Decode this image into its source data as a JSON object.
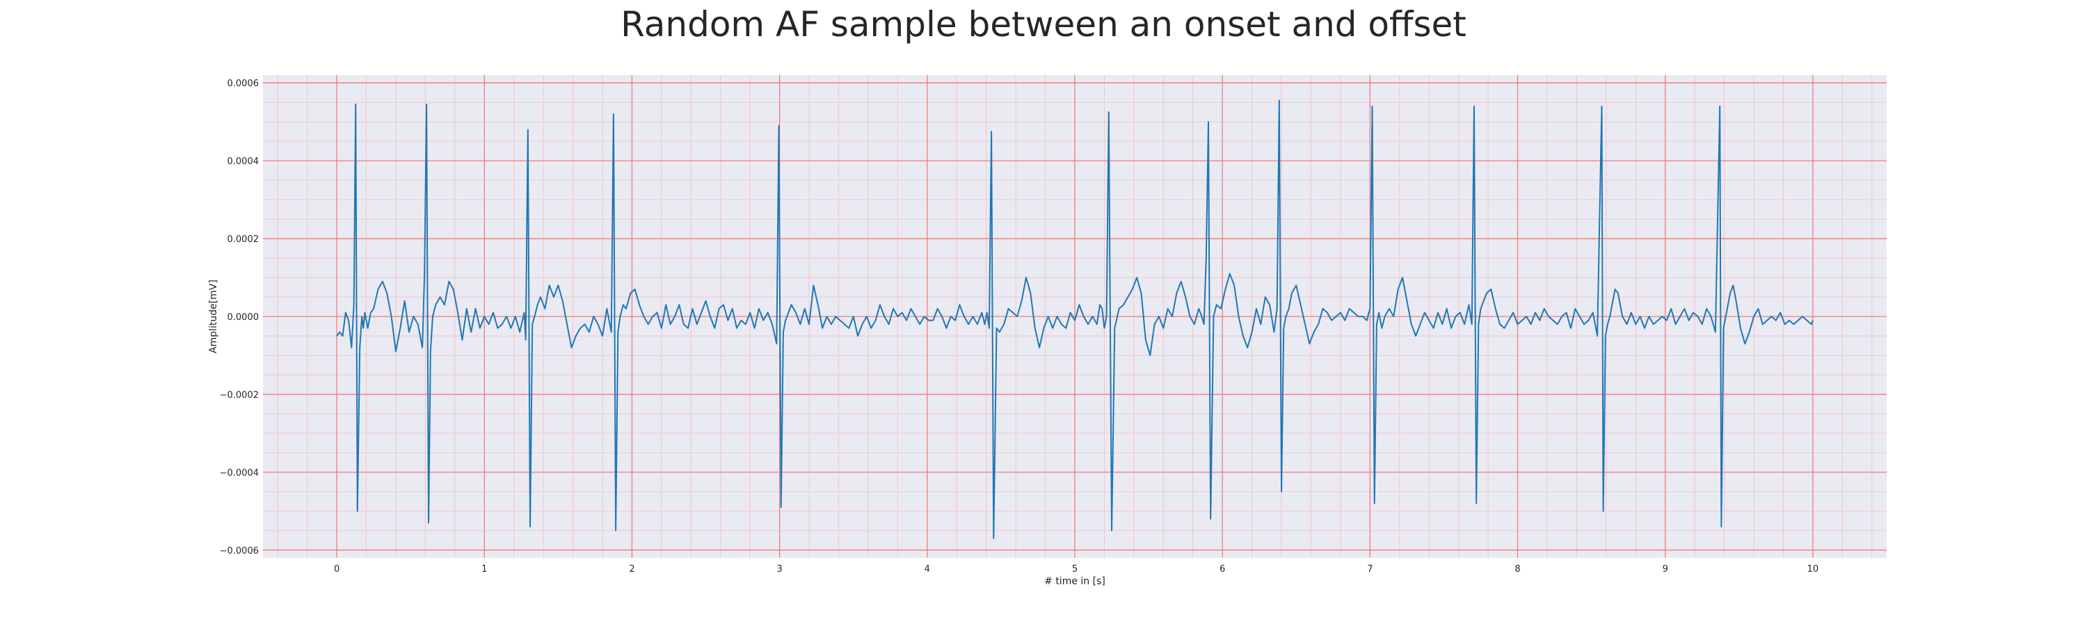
{
  "chart_data": {
    "type": "line",
    "title": "Random AF sample between an onset and offset",
    "xlabel": "# time in [s]",
    "ylabel": "Amplitude[mV]",
    "xlim": [
      -0.5,
      10.5
    ],
    "ylim": [
      -0.00062,
      0.00062
    ],
    "x_ticks": [
      0,
      1,
      2,
      3,
      4,
      5,
      6,
      7,
      8,
      9,
      10
    ],
    "x_tick_labels": [
      "0",
      "1",
      "2",
      "3",
      "4",
      "5",
      "6",
      "7",
      "8",
      "9",
      "10"
    ],
    "y_ticks": [
      -0.0006,
      -0.0004,
      -0.0002,
      0.0,
      0.0002,
      0.0004,
      0.0006
    ],
    "y_tick_labels": [
      "−0.0006",
      "−0.0004",
      "−0.0002",
      "0.0000",
      "0.0002",
      "0.0004",
      "0.0006"
    ],
    "grid": true,
    "minor_grid": true,
    "colors": {
      "line": "#1f77b4",
      "major_grid": "#f07b7b",
      "minor_grid": "#f4c3cf",
      "background": "#eaeaf2"
    },
    "series": [
      {
        "x": [
          0.0,
          0.02,
          0.04,
          0.06,
          0.08,
          0.1,
          0.116,
          0.128,
          0.14,
          0.156,
          0.17,
          0.18,
          0.19,
          0.21,
          0.23,
          0.25,
          0.28,
          0.31,
          0.34,
          0.37,
          0.4,
          0.43,
          0.46,
          0.49,
          0.52,
          0.55,
          0.58,
          0.595,
          0.608,
          0.622,
          0.635,
          0.65,
          0.67,
          0.7,
          0.73,
          0.76,
          0.79,
          0.82,
          0.85,
          0.88,
          0.91,
          0.94,
          0.97,
          1.0,
          1.03,
          1.06,
          1.09,
          1.12,
          1.15,
          1.18,
          1.21,
          1.24,
          1.27,
          1.28,
          1.295,
          1.31,
          1.325,
          1.34,
          1.36,
          1.38,
          1.41,
          1.44,
          1.47,
          1.5,
          1.53,
          1.56,
          1.59,
          1.62,
          1.65,
          1.68,
          1.71,
          1.74,
          1.77,
          1.8,
          1.83,
          1.86,
          1.875,
          1.89,
          1.905,
          1.92,
          1.94,
          1.96,
          1.99,
          2.02,
          2.05,
          2.08,
          2.11,
          2.14,
          2.17,
          2.2,
          2.23,
          2.26,
          2.29,
          2.32,
          2.35,
          2.38,
          2.41,
          2.44,
          2.47,
          2.5,
          2.53,
          2.56,
          2.59,
          2.62,
          2.65,
          2.68,
          2.71,
          2.74,
          2.77,
          2.8,
          2.83,
          2.86,
          2.89,
          2.92,
          2.95,
          2.98,
          2.995,
          3.01,
          3.025,
          3.04,
          3.06,
          3.08,
          3.11,
          3.14,
          3.17,
          3.2,
          3.23,
          3.26,
          3.29,
          3.32,
          3.35,
          3.38,
          3.41,
          3.44,
          3.47,
          3.5,
          3.53,
          3.56,
          3.59,
          3.62,
          3.65,
          3.68,
          3.71,
          3.74,
          3.77,
          3.8,
          3.83,
          3.86,
          3.89,
          3.92,
          3.95,
          3.98,
          4.01,
          4.04,
          4.07,
          4.1,
          4.13,
          4.16,
          4.19,
          4.22,
          4.25,
          4.28,
          4.31,
          4.34,
          4.37,
          4.39,
          4.405,
          4.42,
          4.435,
          4.45,
          4.47,
          4.49,
          4.52,
          4.55,
          4.58,
          4.61,
          4.64,
          4.67,
          4.7,
          4.73,
          4.76,
          4.79,
          4.82,
          4.85,
          4.88,
          4.91,
          4.94,
          4.97,
          5.0,
          5.03,
          5.06,
          5.09,
          5.12,
          5.15,
          5.17,
          5.185,
          5.2,
          5.215,
          5.23,
          5.25,
          5.27,
          5.3,
          5.33,
          5.36,
          5.39,
          5.42,
          5.45,
          5.48,
          5.51,
          5.54,
          5.57,
          5.6,
          5.63,
          5.66,
          5.69,
          5.72,
          5.75,
          5.78,
          5.81,
          5.84,
          5.86,
          5.875,
          5.89,
          5.905,
          5.92,
          5.94,
          5.96,
          5.99,
          6.02,
          6.05,
          6.08,
          6.11,
          6.14,
          6.17,
          6.2,
          6.23,
          6.26,
          6.29,
          6.32,
          6.35,
          6.37,
          6.385,
          6.4,
          6.415,
          6.43,
          6.45,
          6.47,
          6.5,
          6.53,
          6.56,
          6.59,
          6.62,
          6.65,
          6.68,
          6.71,
          6.74,
          6.77,
          6.8,
          6.83,
          6.86,
          6.89,
          6.92,
          6.95,
          6.98,
          6.985,
          7.0,
          7.015,
          7.03,
          7.045,
          7.06,
          7.08,
          7.1,
          7.13,
          7.16,
          7.19,
          7.22,
          7.25,
          7.28,
          7.31,
          7.34,
          7.37,
          7.4,
          7.43,
          7.46,
          7.49,
          7.52,
          7.55,
          7.58,
          7.61,
          7.64,
          7.67,
          7.69,
          7.705,
          7.72,
          7.735,
          7.75,
          7.77,
          7.79,
          7.82,
          7.85,
          7.88,
          7.91,
          7.94,
          7.97,
          8.0,
          8.03,
          8.06,
          8.09,
          8.12,
          8.15,
          8.18,
          8.21,
          8.24,
          8.27,
          8.3,
          8.33,
          8.36,
          8.39,
          8.42,
          8.45,
          8.48,
          8.51,
          8.54,
          8.57,
          8.58,
          8.595,
          8.61,
          8.625,
          8.64,
          8.66,
          8.68,
          8.71,
          8.74,
          8.77,
          8.8,
          8.83,
          8.86,
          8.89,
          8.92,
          8.95,
          8.98,
          9.01,
          9.04,
          9.07,
          9.1,
          9.13,
          9.16,
          9.19,
          9.22,
          9.25,
          9.28,
          9.31,
          9.34,
          9.37,
          9.38,
          9.395,
          9.41,
          9.425,
          9.44,
          9.46,
          9.48,
          9.51,
          9.54,
          9.57,
          9.6,
          9.63,
          9.66,
          9.69,
          9.72,
          9.75,
          9.78,
          9.81,
          9.84,
          9.87,
          9.9,
          9.93,
          9.96,
          9.99,
          10.0
        ],
        "y": [
          -5e-05,
          -4e-05,
          -5e-05,
          1e-05,
          -1e-05,
          -8e-05,
          3e-05,
          0.000545,
          -0.0005,
          -8e-05,
          0.0,
          -3e-05,
          1e-05,
          -3e-05,
          1e-05,
          2e-05,
          7e-05,
          9e-05,
          6e-05,
          0.0,
          -9e-05,
          -3e-05,
          4e-05,
          -4e-05,
          0.0,
          -2e-05,
          -8e-05,
          0.00012,
          0.000545,
          -0.00053,
          -9e-05,
          0.0,
          3e-05,
          5e-05,
          3e-05,
          9e-05,
          7e-05,
          1e-05,
          -6e-05,
          2e-05,
          -4e-05,
          2e-05,
          -3e-05,
          0.0,
          -2e-05,
          1e-05,
          -3e-05,
          -2e-05,
          0.0,
          -3e-05,
          0.0,
          -4e-05,
          1e-05,
          -6e-05,
          0.00048,
          -0.00054,
          -2e-05,
          0.0,
          3e-05,
          5e-05,
          2e-05,
          8e-05,
          5e-05,
          8e-05,
          4e-05,
          -2e-05,
          -8e-05,
          -5e-05,
          -3e-05,
          -2e-05,
          -4e-05,
          0.0,
          -2e-05,
          -5e-05,
          2e-05,
          -4e-05,
          0.00052,
          -0.00055,
          -4e-05,
          0.0,
          3e-05,
          2e-05,
          6e-05,
          7e-05,
          3e-05,
          0.0,
          -2e-05,
          0.0,
          1e-05,
          -3e-05,
          3e-05,
          -2e-05,
          0.0,
          3e-05,
          -2e-05,
          -3e-05,
          2e-05,
          -2e-05,
          1e-05,
          4e-05,
          0.0,
          -3e-05,
          2e-05,
          3e-05,
          -1e-05,
          2e-05,
          -3e-05,
          -1e-05,
          -2e-05,
          1e-05,
          -3e-05,
          2e-05,
          -1e-05,
          1e-05,
          -2e-05,
          -7e-05,
          0.00049,
          -0.00049,
          -4e-05,
          -1e-05,
          1e-05,
          3e-05,
          1e-05,
          -2e-05,
          2e-05,
          -2e-05,
          8e-05,
          3e-05,
          -3e-05,
          0.0,
          -2e-05,
          0.0,
          -1e-05,
          -2e-05,
          -3e-05,
          0.0,
          -5e-05,
          -2e-05,
          0.0,
          -3e-05,
          -1e-05,
          3e-05,
          0.0,
          -2e-05,
          2e-05,
          0.0,
          1e-05,
          -1e-05,
          2e-05,
          0.0,
          -2e-05,
          0.0,
          -1e-05,
          -1e-05,
          2e-05,
          0.0,
          -3e-05,
          0.0,
          -1e-05,
          3e-05,
          0.0,
          -2e-05,
          0.0,
          -2e-05,
          1e-05,
          -2e-05,
          1e-05,
          -3e-05,
          0.000475,
          -0.00057,
          -3e-05,
          -4e-05,
          -2e-05,
          2e-05,
          1e-05,
          0.0,
          4e-05,
          0.0001,
          6e-05,
          -3e-05,
          -8e-05,
          -3e-05,
          0.0,
          -3e-05,
          0.0,
          -2e-05,
          -3e-05,
          1e-05,
          -1e-05,
          3e-05,
          0.0,
          -2e-05,
          0.0,
          -2e-05,
          3e-05,
          2e-05,
          -3e-05,
          0.0,
          0.000525,
          -0.00055,
          -3e-05,
          2e-05,
          3e-05,
          5e-05,
          7e-05,
          0.0001,
          6e-05,
          -6e-05,
          -0.0001,
          -2e-05,
          0.0,
          -3e-05,
          2e-05,
          0.0,
          6e-05,
          9e-05,
          5e-05,
          0.0,
          -2e-05,
          2e-05,
          0.0,
          -2e-05,
          0.00015,
          0.0005,
          -0.00052,
          0.0,
          3e-05,
          2e-05,
          7e-05,
          0.00011,
          8e-05,
          0.0,
          -5e-05,
          -8e-05,
          -4e-05,
          2e-05,
          -2e-05,
          5e-05,
          3e-05,
          -4e-05,
          2e-05,
          0.000555,
          -0.00045,
          -3e-05,
          0.0,
          2e-05,
          6e-05,
          8e-05,
          3e-05,
          -2e-05,
          -7e-05,
          -4e-05,
          -2e-05,
          2e-05,
          1e-05,
          -1e-05,
          0.0,
          1e-05,
          -1e-05,
          2e-05,
          1e-05,
          0.0,
          0.0,
          -1e-05,
          0.0,
          2e-05,
          0.00054,
          -0.00048,
          -2e-05,
          1e-05,
          -3e-05,
          0.0,
          2e-05,
          0.0,
          7e-05,
          0.0001,
          4e-05,
          -2e-05,
          -5e-05,
          -2e-05,
          1e-05,
          -1e-05,
          -3e-05,
          1e-05,
          -2e-05,
          2e-05,
          -3e-05,
          0.0,
          1e-05,
          -2e-05,
          3e-05,
          -2e-05,
          0.00054,
          -0.00048,
          -2e-05,
          2e-05,
          4e-05,
          6e-05,
          7e-05,
          2e-05,
          -2e-05,
          -3e-05,
          -1e-05,
          1e-05,
          -2e-05,
          -1e-05,
          0.0,
          -2e-05,
          1e-05,
          -1e-05,
          2e-05,
          0.0,
          -1e-05,
          -2e-05,
          0.0,
          1e-05,
          -3e-05,
          2e-05,
          0.0,
          -2e-05,
          -1e-05,
          1e-05,
          -5e-05,
          0.00054,
          -0.0005,
          -5e-05,
          -2e-05,
          0.0,
          3e-05,
          7e-05,
          6e-05,
          0.0,
          -2e-05,
          1e-05,
          -2e-05,
          0.0,
          -3e-05,
          0.0,
          -2e-05,
          -1e-05,
          0.0,
          -1e-05,
          2e-05,
          -2e-05,
          0.0,
          2e-05,
          -1e-05,
          1e-05,
          0.0,
          -2e-05,
          2e-05,
          0.0,
          -4e-05,
          0.00054,
          -0.00054,
          -3e-05,
          0.0,
          3e-05,
          6e-05,
          8e-05,
          4e-05,
          -3e-05,
          -7e-05,
          -4e-05,
          0.0,
          2e-05,
          -2e-05,
          -1e-05,
          0.0,
          -1e-05,
          1e-05,
          -2e-05,
          -1e-05,
          -2e-05,
          -1e-05,
          0.0,
          -1e-05,
          -2e-05,
          -1e-05
        ]
      }
    ]
  }
}
